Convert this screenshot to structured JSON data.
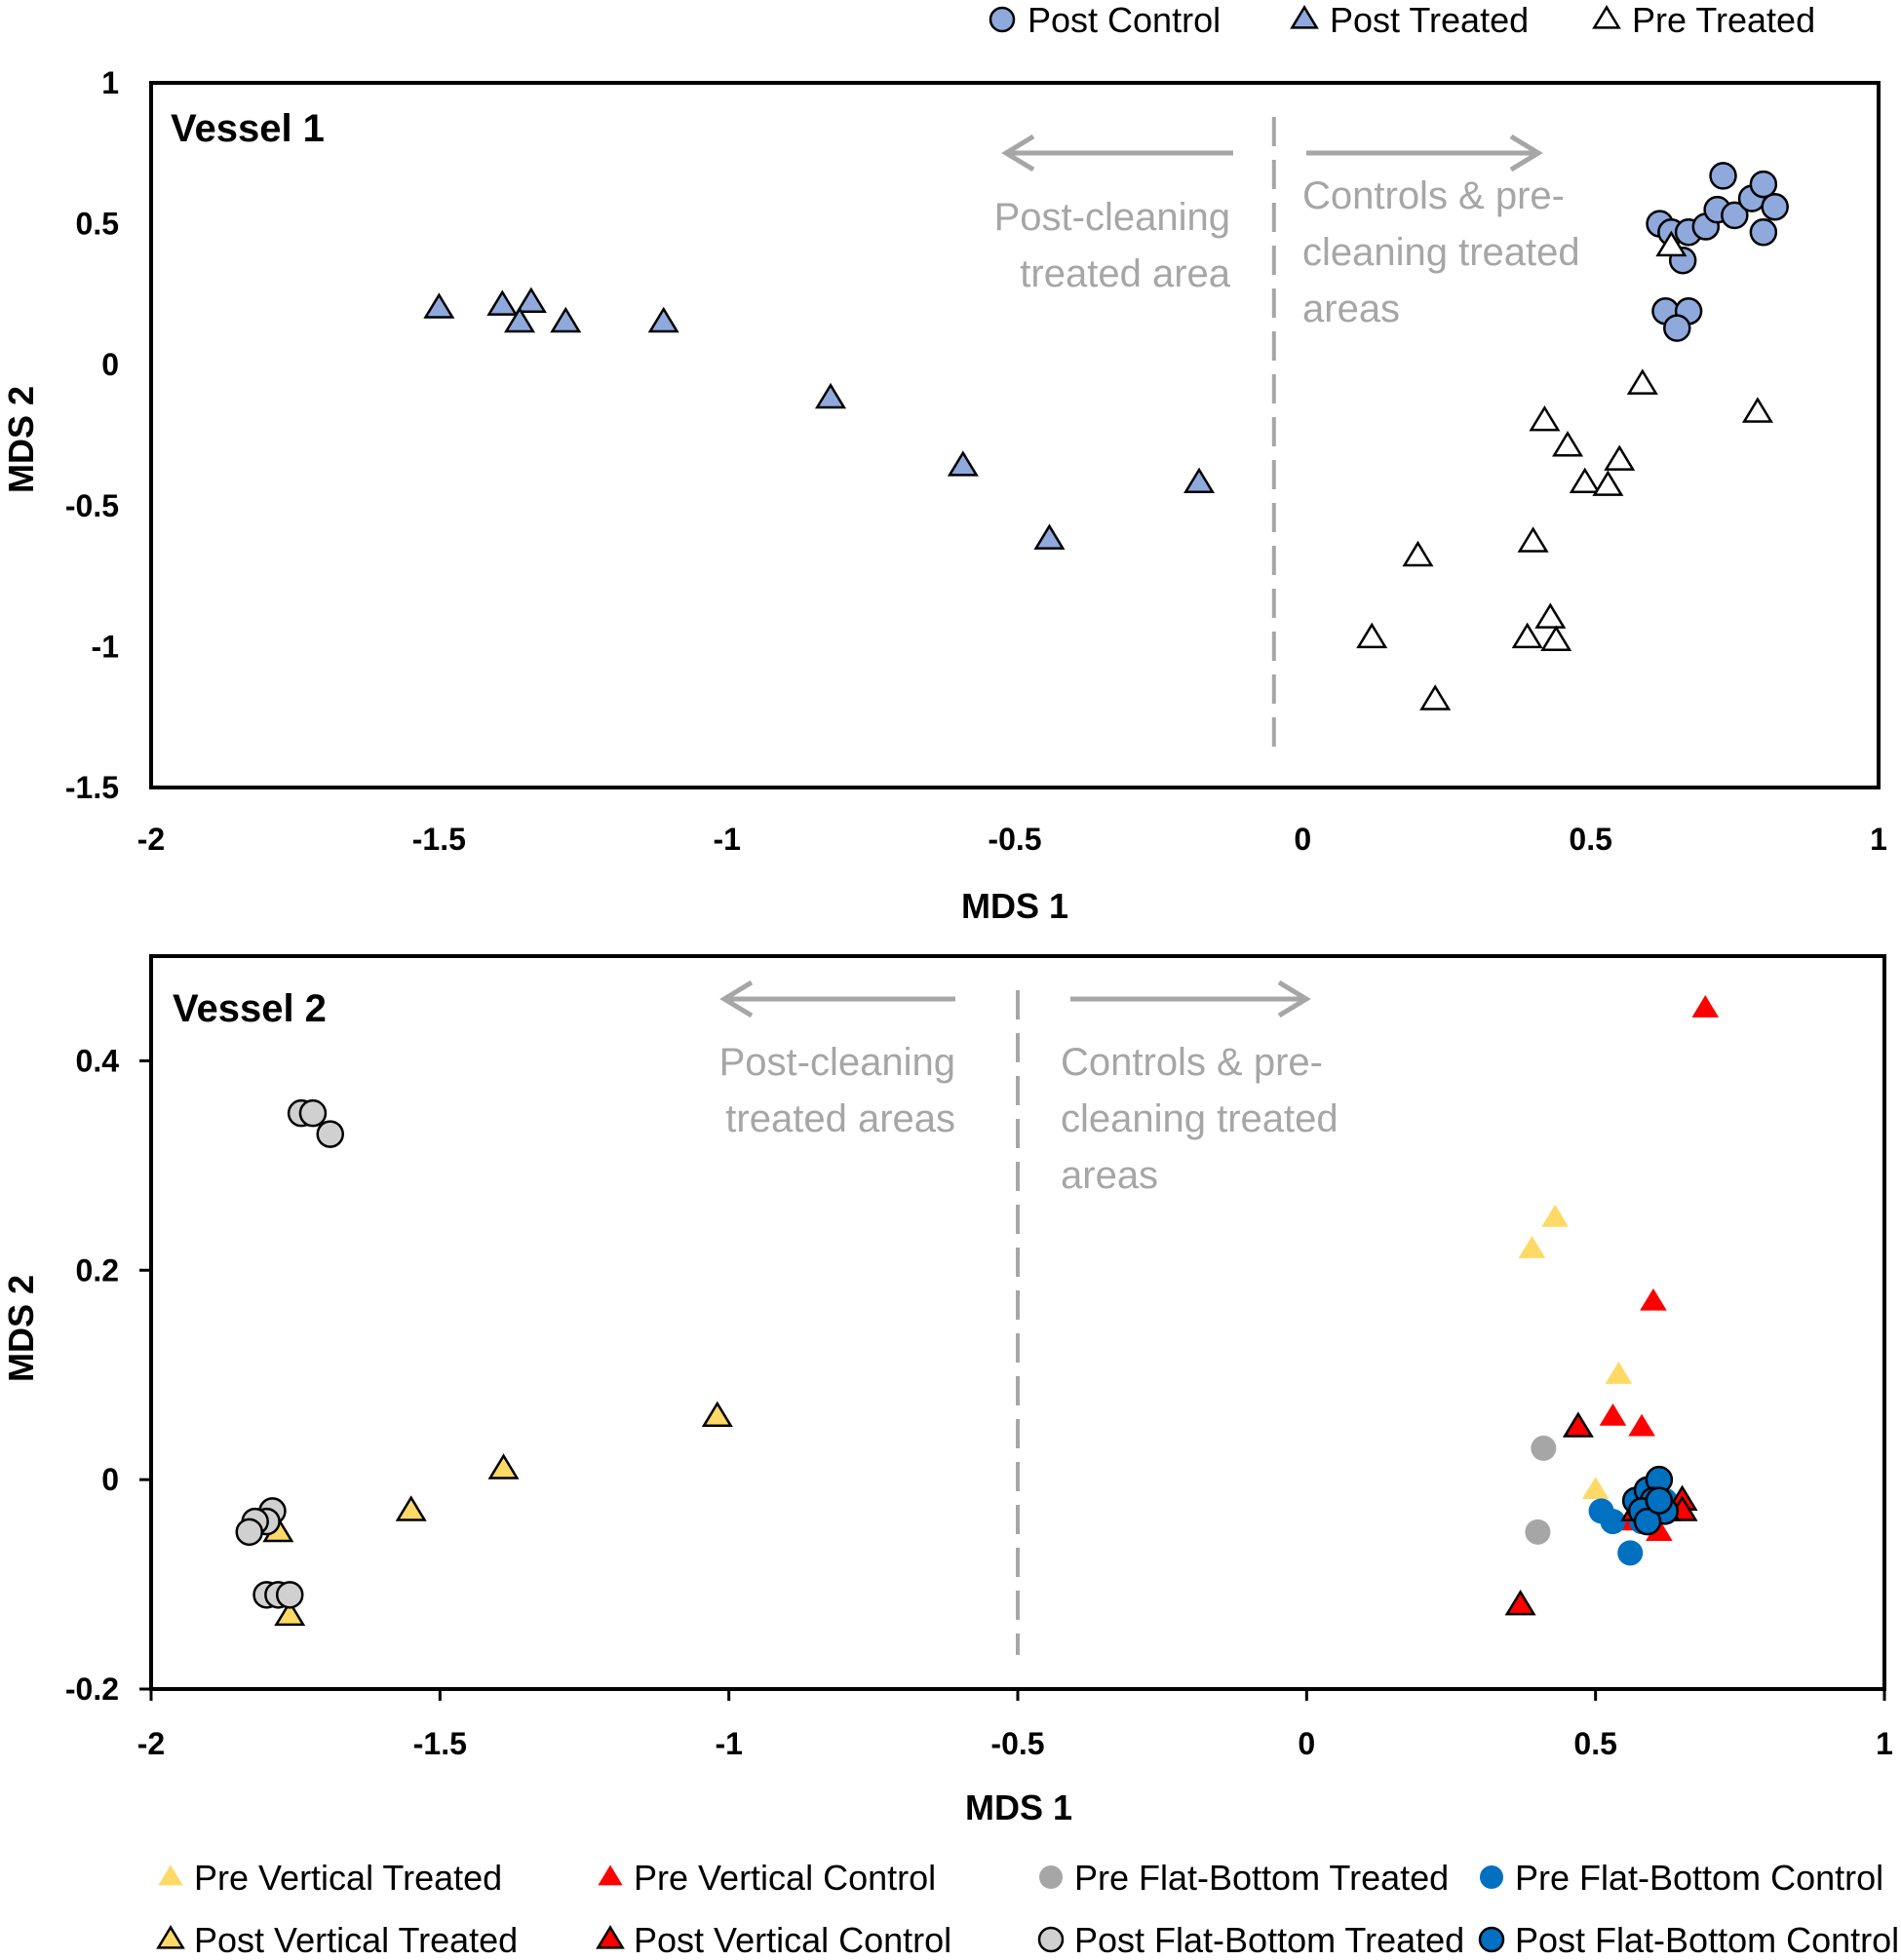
{
  "chart_data": [
    {
      "type": "scatter",
      "panel": "Vessel 1",
      "xlabel": "MDS 1",
      "ylabel": "MDS 2",
      "xlim": [
        -2,
        1
      ],
      "ylim": [
        -1.5,
        1
      ],
      "xticks": [
        -2,
        -1.5,
        -1,
        -0.5,
        0,
        0.5,
        1
      ],
      "yticks": [
        1,
        0.5,
        0,
        -0.5,
        -1,
        -1.5
      ],
      "divider_x": -0.05,
      "annotations": {
        "left": [
          "Post-cleaning",
          "treated area"
        ],
        "right": [
          "Controls & pre-",
          "cleaning treated",
          "areas"
        ]
      },
      "legend_position": "top-right",
      "series": [
        {
          "name": "Post Control",
          "marker": "circle",
          "fill": "#8fa9dc",
          "stroke": "#000000",
          "points": [
            [
              0.62,
              0.5
            ],
            [
              0.64,
              0.47
            ],
            [
              0.67,
              0.47
            ],
            [
              0.66,
              0.37
            ],
            [
              0.7,
              0.49
            ],
            [
              0.73,
              0.67
            ],
            [
              0.72,
              0.55
            ],
            [
              0.75,
              0.53
            ],
            [
              0.78,
              0.59
            ],
            [
              0.8,
              0.64
            ],
            [
              0.82,
              0.56
            ],
            [
              0.8,
              0.47
            ],
            [
              0.63,
              0.19
            ],
            [
              0.67,
              0.19
            ],
            [
              0.65,
              0.13
            ]
          ]
        },
        {
          "name": "Post Treated",
          "marker": "triangle",
          "fill": "#8fa9dc",
          "stroke": "#000000",
          "points": [
            [
              -1.5,
              0.2
            ],
            [
              -1.39,
              0.21
            ],
            [
              -1.34,
              0.22
            ],
            [
              -1.36,
              0.15
            ],
            [
              -1.28,
              0.15
            ],
            [
              -1.11,
              0.15
            ],
            [
              -0.82,
              -0.12
            ],
            [
              -0.59,
              -0.36
            ],
            [
              -0.44,
              -0.62
            ],
            [
              -0.18,
              -0.42
            ]
          ]
        },
        {
          "name": "Pre Treated",
          "marker": "triangle",
          "fill": "#ffffff",
          "stroke": "#000000",
          "points": [
            [
              0.64,
              0.42
            ],
            [
              0.59,
              -0.07
            ],
            [
              0.79,
              -0.17
            ],
            [
              0.42,
              -0.2
            ],
            [
              0.46,
              -0.29
            ],
            [
              0.55,
              -0.34
            ],
            [
              0.49,
              -0.42
            ],
            [
              0.53,
              -0.43
            ],
            [
              0.4,
              -0.63
            ],
            [
              0.2,
              -0.68
            ],
            [
              0.12,
              -0.97
            ],
            [
              0.39,
              -0.97
            ],
            [
              0.43,
              -0.9
            ],
            [
              0.44,
              -0.98
            ],
            [
              0.23,
              -1.19
            ]
          ]
        }
      ]
    },
    {
      "type": "scatter",
      "panel": "Vessel 2",
      "xlabel": "MDS 1",
      "ylabel": "MDS 2",
      "xlim": [
        -2,
        1
      ],
      "ylim": [
        -0.2,
        0.5
      ],
      "xticks": [
        -2,
        -1.5,
        -1,
        -0.5,
        0,
        0.5,
        1
      ],
      "yticks": [
        0.4,
        0.2,
        0,
        -0.2
      ],
      "divider_x": -0.5,
      "annotations": {
        "left": [
          "Post-cleaning",
          "treated areas"
        ],
        "right": [
          "Controls & pre-",
          "cleaning treated",
          "areas"
        ]
      },
      "legend_position": "bottom",
      "series": [
        {
          "name": "Pre Vertical Treated",
          "marker": "triangle",
          "fill": "#ffd966",
          "stroke": "none",
          "points": [
            [
              0.39,
              0.22
            ],
            [
              0.43,
              0.25
            ],
            [
              0.54,
              0.1
            ],
            [
              0.5,
              -0.01
            ],
            [
              0.58,
              -0.03
            ]
          ]
        },
        {
          "name": "Pre Vertical Control",
          "marker": "triangle",
          "fill": "#ff0000",
          "stroke": "none",
          "points": [
            [
              0.69,
              0.45
            ],
            [
              0.6,
              0.17
            ],
            [
              0.53,
              0.06
            ],
            [
              0.58,
              0.05
            ],
            [
              0.61,
              -0.05
            ],
            [
              0.56,
              -0.04
            ]
          ]
        },
        {
          "name": "Pre Flat-Bottom Treated",
          "marker": "circle",
          "fill": "#a6a6a6",
          "stroke": "none",
          "points": [
            [
              0.41,
              0.03
            ],
            [
              0.4,
              -0.05
            ]
          ]
        },
        {
          "name": "Pre Flat-Bottom Control",
          "marker": "circle",
          "fill": "#0070c0",
          "stroke": "none",
          "points": [
            [
              0.51,
              -0.03
            ],
            [
              0.53,
              -0.04
            ],
            [
              0.56,
              -0.07
            ],
            [
              0.58,
              -0.04
            ],
            [
              0.6,
              -0.03
            ],
            [
              0.62,
              -0.02
            ]
          ]
        },
        {
          "name": "Post Vertical Treated",
          "marker": "triangle",
          "fill": "#ffd966",
          "stroke": "#000000",
          "points": [
            [
              -1.02,
              0.06
            ],
            [
              -1.39,
              0.01
            ],
            [
              -1.55,
              -0.03
            ],
            [
              -1.78,
              -0.05
            ],
            [
              -1.76,
              -0.13
            ]
          ]
        },
        {
          "name": "Post Vertical Control",
          "marker": "triangle",
          "fill": "#ff0000",
          "stroke": "#000000",
          "points": [
            [
              0.47,
              0.05
            ],
            [
              0.37,
              -0.12
            ],
            [
              0.65,
              -0.02
            ],
            [
              0.65,
              -0.03
            ],
            [
              0.57,
              -0.03
            ],
            [
              0.59,
              -0.02
            ],
            [
              0.62,
              -0.03
            ]
          ]
        },
        {
          "name": "Post Flat-Bottom Treated",
          "marker": "circle",
          "fill": "#d0d0d0",
          "stroke": "#000000",
          "points": [
            [
              -1.74,
              0.35
            ],
            [
              -1.72,
              0.35
            ],
            [
              -1.69,
              0.33
            ],
            [
              -1.79,
              -0.03
            ],
            [
              -1.8,
              -0.04
            ],
            [
              -1.82,
              -0.04
            ],
            [
              -1.83,
              -0.05
            ],
            [
              -1.8,
              -0.11
            ],
            [
              -1.78,
              -0.11
            ],
            [
              -1.76,
              -0.11
            ]
          ]
        },
        {
          "name": "Post Flat-Bottom Control",
          "marker": "circle",
          "fill": "#0070c0",
          "stroke": "#000000",
          "points": [
            [
              0.57,
              -0.02
            ],
            [
              0.59,
              -0.01
            ],
            [
              0.61,
              0.0
            ],
            [
              0.6,
              -0.02
            ],
            [
              0.62,
              -0.03
            ],
            [
              0.58,
              -0.03
            ],
            [
              0.59,
              -0.04
            ],
            [
              0.61,
              -0.02
            ]
          ]
        }
      ]
    }
  ]
}
